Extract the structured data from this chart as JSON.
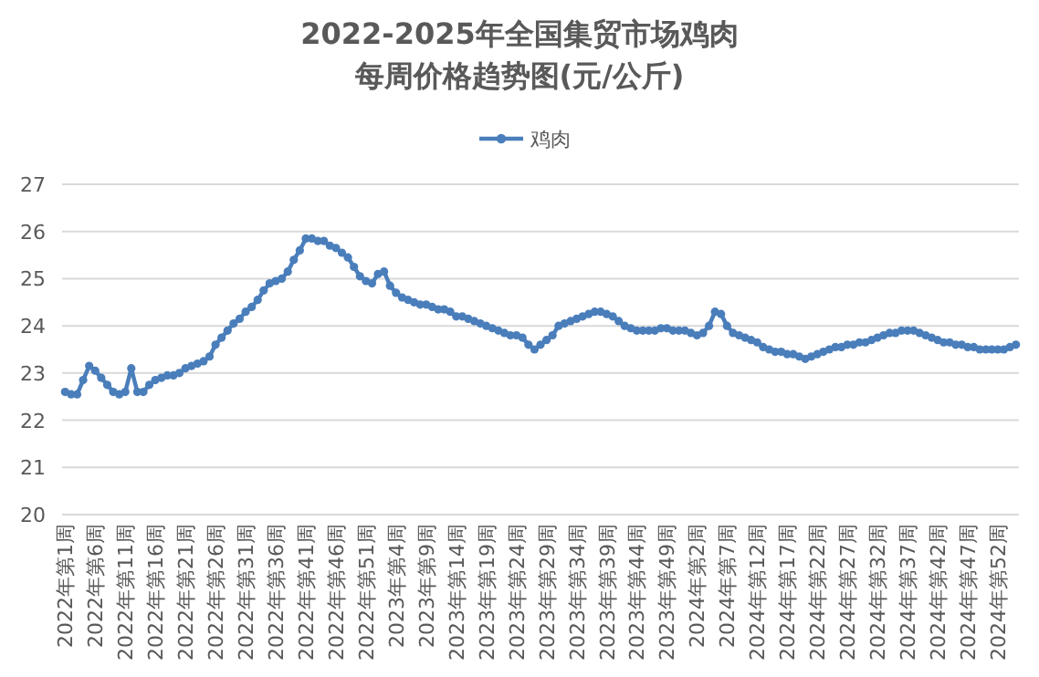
{
  "chart_data": {
    "type": "line",
    "title": "2022-2025年全国集贸市场鸡肉",
    "subtitle": "每周价格趋势图(元/公斤)",
    "categories": [
      "2022年第1周",
      null,
      null,
      null,
      null,
      "2022年第6周",
      null,
      null,
      null,
      null,
      "2022年第11周",
      null,
      null,
      null,
      null,
      "2022年第16周",
      null,
      null,
      null,
      null,
      "2022年第21周",
      null,
      null,
      null,
      null,
      "2022年第26周",
      null,
      null,
      null,
      null,
      "2022年第31周",
      null,
      null,
      null,
      null,
      "2022年第36周",
      null,
      null,
      null,
      null,
      "2022年第41周",
      null,
      null,
      null,
      null,
      "2022年第46周",
      null,
      null,
      null,
      null,
      "2022年第51周",
      null,
      null,
      null,
      null,
      "2023年第4周",
      null,
      null,
      null,
      null,
      "2023年第9周",
      null,
      null,
      null,
      null,
      "2023年第14周",
      null,
      null,
      null,
      null,
      "2023年第19周",
      null,
      null,
      null,
      null,
      "2023年第24周",
      null,
      null,
      null,
      null,
      "2023年第29周",
      null,
      null,
      null,
      null,
      "2023年第34周",
      null,
      null,
      null,
      null,
      "2023年第39周",
      null,
      null,
      null,
      null,
      "2023年第44周",
      null,
      null,
      null,
      null,
      "2023年第49周",
      null,
      null,
      null,
      null,
      "2024年第2周",
      null,
      null,
      null,
      null,
      "2024年第7周",
      null,
      null,
      null,
      null,
      "2024年第12周",
      null,
      null,
      null,
      null,
      "2024年第17周",
      null,
      null,
      null,
      null,
      "2024年第22周",
      null,
      null,
      null,
      null,
      "2024年第27周",
      null,
      null,
      null,
      null,
      "2024年第32周",
      null,
      null,
      null,
      null,
      "2024年第37周",
      null,
      null,
      null,
      null,
      "2024年第42周",
      null,
      null,
      null,
      null,
      "2024年第47周",
      null,
      null,
      null,
      null,
      "2024年第52周",
      null,
      null,
      null
    ],
    "series": [
      {
        "name": "鸡肉",
        "color": "#4a7ebb",
        "values": [
          22.6,
          22.55,
          22.55,
          22.85,
          23.15,
          23.05,
          22.9,
          22.75,
          22.6,
          22.55,
          22.6,
          23.1,
          22.6,
          22.6,
          22.75,
          22.85,
          22.9,
          22.95,
          22.95,
          23.0,
          23.1,
          23.15,
          23.2,
          23.25,
          23.35,
          23.6,
          23.75,
          23.9,
          24.05,
          24.15,
          24.3,
          24.4,
          24.55,
          24.75,
          24.9,
          24.95,
          25.0,
          25.15,
          25.4,
          25.6,
          25.85,
          25.85,
          25.8,
          25.8,
          25.7,
          25.65,
          25.55,
          25.45,
          25.25,
          25.05,
          24.95,
          24.9,
          25.1,
          25.15,
          24.85,
          24.7,
          24.6,
          24.55,
          24.5,
          24.45,
          24.45,
          24.4,
          24.35,
          24.35,
          24.3,
          24.2,
          24.2,
          24.15,
          24.1,
          24.05,
          24.0,
          23.95,
          23.9,
          23.85,
          23.8,
          23.8,
          23.75,
          23.6,
          23.5,
          23.6,
          23.7,
          23.8,
          24.0,
          24.05,
          24.1,
          24.15,
          24.2,
          24.25,
          24.3,
          24.3,
          24.25,
          24.2,
          24.1,
          24.0,
          23.95,
          23.9,
          23.9,
          23.9,
          23.9,
          23.95,
          23.95,
          23.9,
          23.9,
          23.9,
          23.85,
          23.8,
          23.85,
          24.0,
          24.3,
          24.25,
          24.0,
          23.85,
          23.8,
          23.75,
          23.7,
          23.65,
          23.55,
          23.5,
          23.45,
          23.45,
          23.4,
          23.4,
          23.35,
          23.3,
          23.35,
          23.4,
          23.45,
          23.5,
          23.55,
          23.55,
          23.6,
          23.6,
          23.65,
          23.65,
          23.7,
          23.75,
          23.8,
          23.85,
          23.85,
          23.9,
          23.9,
          23.9,
          23.85,
          23.8,
          23.75,
          23.7,
          23.65,
          23.65,
          23.6,
          23.6,
          23.55,
          23.55,
          23.5,
          23.5,
          23.5,
          23.5,
          23.5,
          23.55,
          23.6
        ]
      }
    ],
    "ylim": [
      20,
      27
    ],
    "yticks": [
      20,
      21,
      22,
      23,
      24,
      25,
      26,
      27
    ],
    "grid": "y",
    "legend": "top",
    "marker": "circle",
    "line_style": "solid"
  }
}
